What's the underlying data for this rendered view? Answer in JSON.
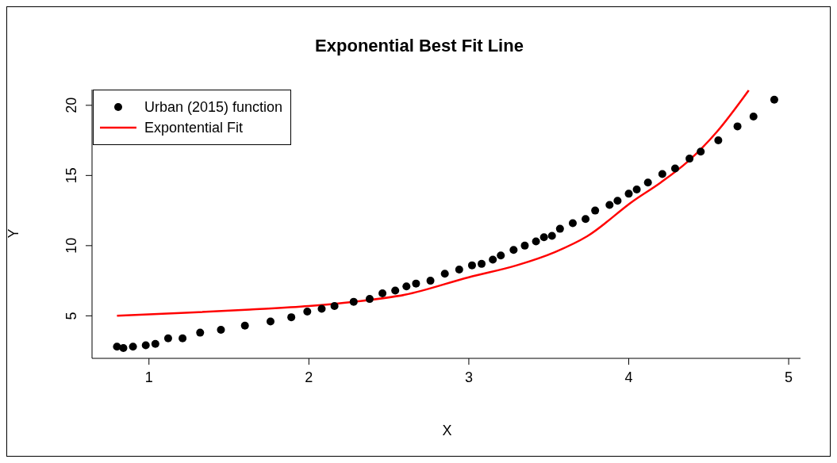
{
  "chart_data": {
    "type": "scatter",
    "title": "Exponential Best Fit Line",
    "xlabel": "X",
    "ylabel": "Y",
    "xlim": [
      0.644,
      5.074
    ],
    "ylim": [
      1.97,
      21.12
    ],
    "xticks": [
      1,
      2,
      3,
      4,
      5
    ],
    "yticks": [
      5,
      10,
      15,
      20
    ],
    "grid": false,
    "legend": "top left",
    "series": [
      {
        "name": "Urban (2015) function",
        "marker": "circle",
        "color": "#000000",
        "x": [
          0.8,
          0.84,
          0.9,
          0.98,
          1.04,
          1.12,
          1.21,
          1.32,
          1.45,
          1.6,
          1.76,
          1.89,
          1.99,
          2.08,
          2.16,
          2.28,
          2.38,
          2.46,
          2.54,
          2.61,
          2.67,
          2.76,
          2.85,
          2.94,
          3.02,
          3.08,
          3.15,
          3.2,
          3.28,
          3.35,
          3.42,
          3.47,
          3.52,
          3.57,
          3.65,
          3.73,
          3.79,
          3.88,
          3.93,
          4.0,
          4.05,
          4.12,
          4.21,
          4.29,
          4.38,
          4.45,
          4.56,
          4.68,
          4.78,
          4.91
        ],
        "values": [
          2.8,
          2.7,
          2.8,
          2.9,
          3.0,
          3.4,
          3.4,
          3.8,
          4.0,
          4.3,
          4.6,
          4.9,
          5.3,
          5.5,
          5.7,
          6.0,
          6.2,
          6.6,
          6.8,
          7.1,
          7.3,
          7.5,
          8.0,
          8.3,
          8.6,
          8.7,
          9.0,
          9.3,
          9.7,
          10.0,
          10.3,
          10.6,
          10.7,
          11.2,
          11.6,
          11.9,
          12.5,
          12.9,
          13.2,
          13.7,
          14.0,
          14.5,
          15.1,
          15.5,
          16.2,
          16.7,
          17.5,
          18.5,
          19.2,
          20.4
        ]
      },
      {
        "name": "Expontential Fit",
        "type": "line",
        "marker": "none",
        "line_style": "solid",
        "color": "#ff0000",
        "x": [
          0.8,
          1.2,
          1.63,
          2.0,
          2.28,
          2.6,
          3.0,
          3.3,
          3.54,
          3.74,
          4.03,
          4.2,
          4.37,
          4.55,
          4.75
        ],
        "values": [
          5.0,
          5.2,
          5.45,
          5.7,
          6.0,
          6.5,
          7.75,
          8.6,
          9.55,
          10.67,
          13.2,
          14.5,
          16.0,
          18.1,
          21.07
        ]
      }
    ]
  }
}
